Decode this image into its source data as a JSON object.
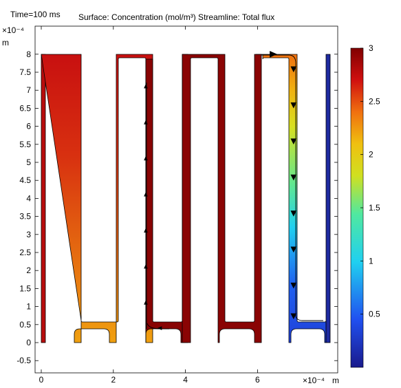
{
  "header": {
    "time_label": "Time=100 ms",
    "plot_title": "Surface: Concentration (mol/m³)  Streamline: Total flux"
  },
  "chart_data": {
    "type": "heatmap",
    "x_axis": {
      "unit": "m",
      "multiplier": "×10⁻⁴",
      "range": [
        -0.2,
        8.4
      ],
      "ticks": [
        0,
        2,
        4,
        6
      ]
    },
    "y_axis": {
      "unit": "m",
      "multiplier": "×10⁻⁴",
      "range": [
        -0.8,
        8.8
      ],
      "ticks": [
        -0.5,
        0,
        0.5,
        1,
        1.5,
        2,
        2.5,
        3,
        3.5,
        4,
        4.5,
        5,
        5.5,
        6,
        6.5,
        7,
        7.5,
        8
      ]
    },
    "colorbar": {
      "min": 0,
      "max": 3,
      "ticks": [
        0.5,
        1,
        1.5,
        2,
        2.5,
        3
      ],
      "colormap": "rainbow",
      "colors": [
        "#1a1a8c",
        "#2040e0",
        "#20d0f0",
        "#40e0a0",
        "#d0e020",
        "#f0c010",
        "#f07010",
        "#d01010",
        "#800000"
      ]
    },
    "concentration_regions": [
      {
        "name": "left-strip",
        "x": [
          0,
          0.1
        ],
        "y": [
          0,
          8
        ],
        "value_top": 2.9,
        "value_bottom": 2.8
      },
      {
        "name": "segment-1-vertical",
        "x": [
          1.05,
          1.2
        ],
        "y": [
          0,
          8
        ],
        "value_top": 2.7,
        "value_bottom": 2.2
      },
      {
        "name": "segment-2",
        "x": [
          2.05,
          3.05
        ],
        "y": [
          0,
          8
        ],
        "value_top": 2.4,
        "value_bottom": 2.2
      },
      {
        "name": "segment-3",
        "x": [
          3.05,
          5.05
        ],
        "y": [
          0,
          8
        ],
        "value_top": 3.0,
        "value_bottom": 3.0
      },
      {
        "name": "segment-4",
        "x": [
          5.05,
          7.05
        ],
        "y": [
          0,
          8
        ],
        "value_top": 2.8,
        "value_bottom": 2.9
      },
      {
        "name": "segment-5-vertical",
        "x": [
          6.9,
          7.05
        ],
        "y": [
          0,
          8
        ],
        "value_top": 2.5,
        "value_bottom": 0.3
      },
      {
        "name": "right-strip",
        "x": [
          7.9,
          8.0
        ],
        "y": [
          0,
          8
        ],
        "value_top": 0.1,
        "value_bottom": 0.1
      }
    ],
    "streamline_arrows": [
      {
        "x": 2.9,
        "y": 1.1,
        "direction": "up"
      },
      {
        "x": 2.9,
        "y": 2.1,
        "direction": "up"
      },
      {
        "x": 2.9,
        "y": 3.1,
        "direction": "up"
      },
      {
        "x": 2.9,
        "y": 4.1,
        "direction": "up"
      },
      {
        "x": 2.9,
        "y": 5.1,
        "direction": "up"
      },
      {
        "x": 2.9,
        "y": 6.1,
        "direction": "up"
      },
      {
        "x": 2.9,
        "y": 7.1,
        "direction": "up"
      },
      {
        "x": 3.3,
        "y": 0.4,
        "direction": "left"
      },
      {
        "x": 6.4,
        "y": 8.0,
        "direction": "right"
      },
      {
        "x": 7.0,
        "y": 7.6,
        "direction": "down"
      },
      {
        "x": 7.0,
        "y": 6.6,
        "direction": "down"
      },
      {
        "x": 7.0,
        "y": 5.6,
        "direction": "down"
      },
      {
        "x": 7.0,
        "y": 4.6,
        "direction": "down"
      },
      {
        "x": 7.0,
        "y": 3.6,
        "direction": "down"
      },
      {
        "x": 7.0,
        "y": 2.6,
        "direction": "down"
      },
      {
        "x": 7.0,
        "y": 1.6,
        "direction": "down"
      },
      {
        "x": 7.0,
        "y": 0.75,
        "direction": "down"
      }
    ]
  }
}
